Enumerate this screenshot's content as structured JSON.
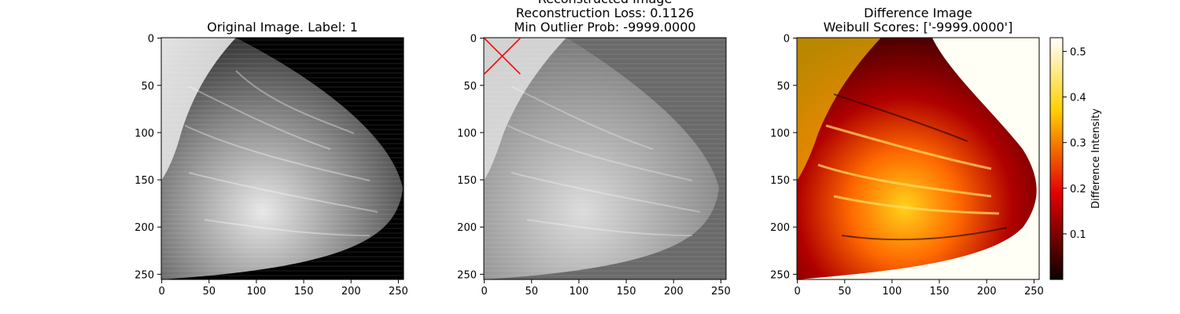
{
  "chart_data": [
    {
      "type": "image",
      "title": "Original Image. Label: 1",
      "xlim": [
        0,
        255
      ],
      "ylim": [
        255,
        0
      ],
      "xticks": [
        0,
        50,
        100,
        150,
        200,
        250
      ],
      "yticks": [
        0,
        50,
        100,
        150,
        200,
        250
      ],
      "colormap": "gray",
      "background": "#000000"
    },
    {
      "type": "image",
      "title_lines": [
        "Reconstructed Image",
        "Reconstruction Loss: 0.1126",
        "Min Outlier Prob: -9999.0000"
      ],
      "xlim": [
        0,
        255
      ],
      "ylim": [
        255,
        0
      ],
      "xticks": [
        0,
        50,
        100,
        150,
        200,
        250
      ],
      "yticks": [
        0,
        50,
        100,
        150,
        200,
        250
      ],
      "colormap": "gray",
      "background": "#6a6a6a",
      "marker": {
        "shape": "x",
        "color": "#ff0000",
        "x_range": [
          0,
          38
        ],
        "y_range": [
          0,
          38
        ]
      }
    },
    {
      "type": "heatmap",
      "title_lines": [
        "Difference Image",
        "Weibull Scores: ['-9999.0000']"
      ],
      "xlim": [
        0,
        255
      ],
      "ylim": [
        255,
        0
      ],
      "xticks": [
        0,
        50,
        100,
        150,
        200,
        250
      ],
      "yticks": [
        0,
        50,
        100,
        150,
        200,
        250
      ],
      "colormap": "hot",
      "background": "#fffff5",
      "colorbar": {
        "label": "Difference Intensity",
        "range": [
          0.0,
          0.53
        ],
        "ticks": [
          0.1,
          0.2,
          0.3,
          0.4,
          0.5
        ]
      }
    }
  ]
}
